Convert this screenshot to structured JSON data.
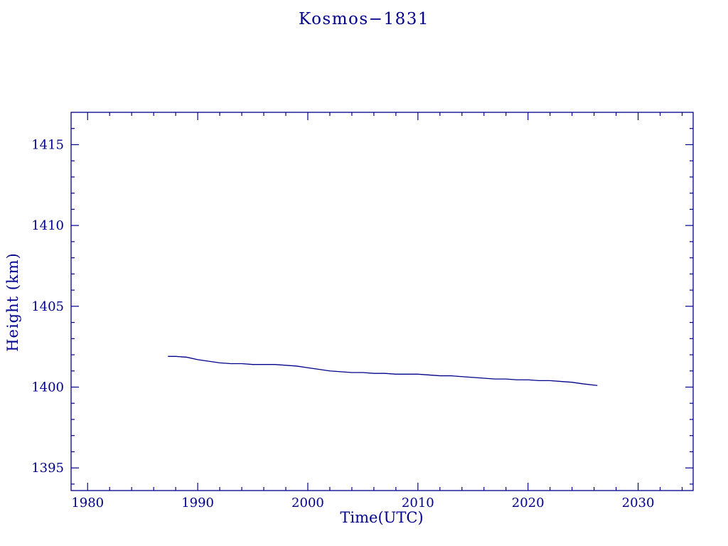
{
  "chart_data": {
    "type": "line",
    "title": "Kosmos−1831",
    "xlabel": "Time(UTC)",
    "ylabel": "Height (km)",
    "xlim": [
      1978.5,
      2035.0
    ],
    "ylim": [
      1393.6,
      1417.0
    ],
    "xticks": [
      1980,
      1990,
      2000,
      2010,
      2020,
      2030
    ],
    "yticks": [
      1395,
      1400,
      1405,
      1410,
      1415
    ],
    "x_minor_step": 2,
    "y_minor_step": 1,
    "grid": false,
    "legend": false,
    "line_color": "#00008b",
    "series": [
      {
        "name": "height",
        "x": [
          1987.3,
          1988,
          1989,
          1990,
          1991,
          1992,
          1993,
          1994,
          1995,
          1996,
          1997,
          1998,
          1999,
          2000,
          2001,
          2002,
          2003,
          2004,
          2005,
          2006,
          2007,
          2008,
          2009,
          2010,
          2011,
          2012,
          2013,
          2014,
          2015,
          2016,
          2017,
          2018,
          2019,
          2020,
          2021,
          2022,
          2023,
          2024,
          2025,
          2026.3
        ],
        "y": [
          1401.9,
          1401.9,
          1401.85,
          1401.7,
          1401.6,
          1401.5,
          1401.45,
          1401.45,
          1401.4,
          1401.4,
          1401.4,
          1401.35,
          1401.3,
          1401.2,
          1401.1,
          1401.0,
          1400.95,
          1400.9,
          1400.9,
          1400.85,
          1400.85,
          1400.8,
          1400.8,
          1400.8,
          1400.75,
          1400.7,
          1400.7,
          1400.65,
          1400.6,
          1400.55,
          1400.5,
          1400.5,
          1400.45,
          1400.45,
          1400.4,
          1400.4,
          1400.35,
          1400.3,
          1400.2,
          1400.1
        ]
      }
    ]
  }
}
